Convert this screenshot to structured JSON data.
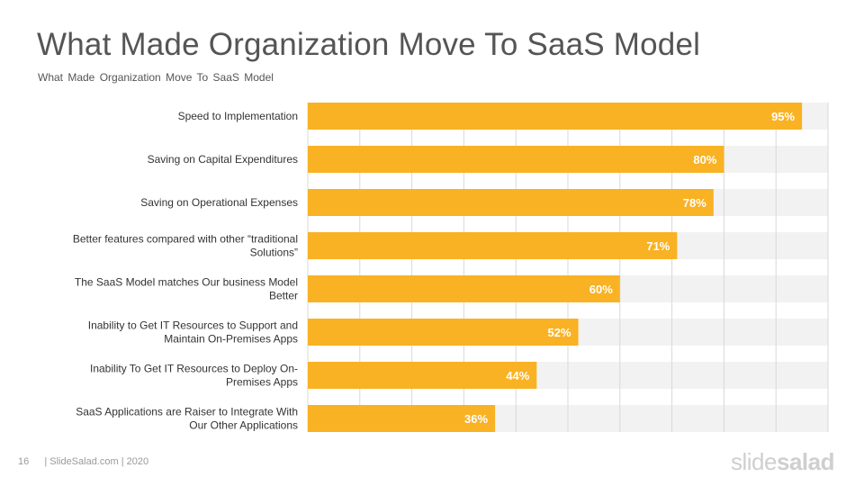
{
  "slide": {
    "title": "What Made Organization Move To SaaS Model",
    "subtitle": "What Made Organization  Move To SaaS  Model"
  },
  "footer": {
    "page_number": "16",
    "source": "| SlideSalad.com | 2020"
  },
  "logo": {
    "part1": "slide",
    "part2": "salad"
  },
  "colors": {
    "bar": "#F9B224",
    "band": "#F2F2F2",
    "grid": "#D9D9D9",
    "label": "#333333",
    "value_label": "#FFFFFF"
  },
  "chart_data": {
    "type": "bar",
    "orientation": "horizontal",
    "categories": [
      [
        "Speed to Implementation"
      ],
      [
        "Saving on Capital  Expenditures"
      ],
      [
        "Saving on Operational  Expenses"
      ],
      [
        "Better features compared with other “traditional",
        "Solutions”"
      ],
      [
        "The SaaS Model matches Our business Model",
        "Better"
      ],
      [
        "Inability to Get IT Resources to Support and",
        "Maintain On-Premises Apps"
      ],
      [
        "Inability To Get IT Resources to Deploy On-",
        "Premises Apps"
      ],
      [
        "SaaS Applications  are Raiser to Integrate With",
        "Our Other Applications"
      ]
    ],
    "values": [
      95,
      80,
      78,
      71,
      60,
      52,
      44,
      36
    ],
    "value_labels": [
      "95%",
      "80%",
      "78%",
      "71%",
      "60%",
      "52%",
      "44%",
      "36%"
    ],
    "xlim": [
      0,
      100
    ],
    "grid": true,
    "legend": false
  }
}
